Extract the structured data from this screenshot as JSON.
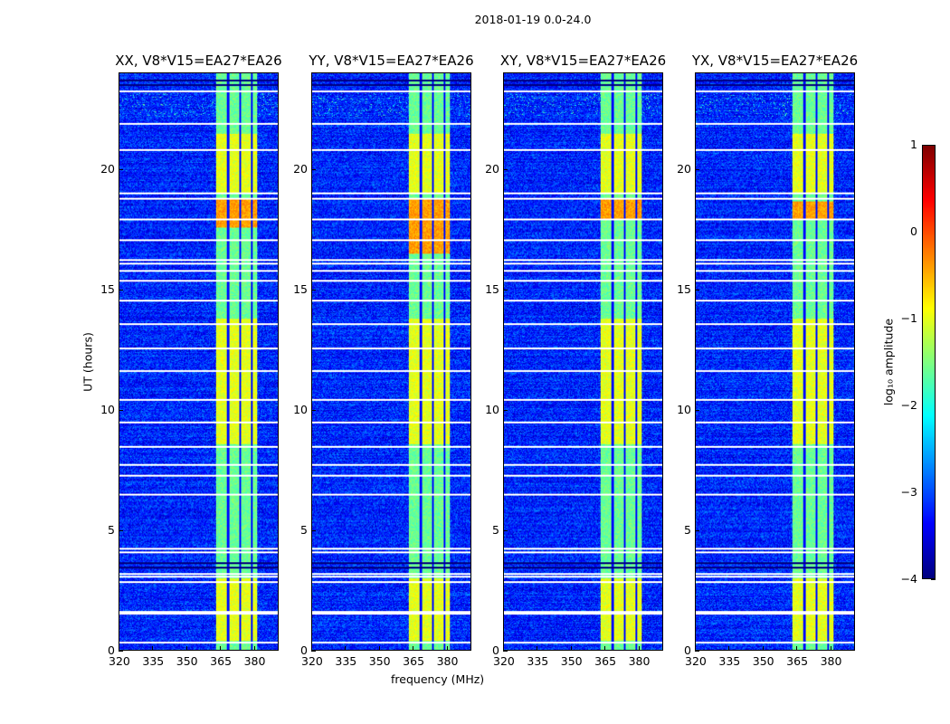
{
  "chart_data": {
    "type": "heatmap",
    "title": "2018-01-19 0.0-24.0",
    "xlabel": "frequency (MHz)",
    "ylabel": "UT (hours)",
    "xlim": [
      320,
      391
    ],
    "ylim": [
      0,
      24
    ],
    "xticks": [
      "320",
      "335",
      "350",
      "365",
      "380"
    ],
    "xtick_values": [
      320,
      335,
      350,
      365,
      380
    ],
    "yticks": [
      "0",
      "5",
      "10",
      "15",
      "20"
    ],
    "ytick_values": [
      0,
      5,
      10,
      15,
      20
    ],
    "panels": [
      {
        "title": "XX, V8*V15=EA27*EA26",
        "peak_hours": [
          17.6,
          18.8
        ]
      },
      {
        "title": "YY, V8*V15=EA27*EA26",
        "peak_hours": [
          16.5,
          18.8
        ]
      },
      {
        "title": "XY, V8*V15=EA27*EA26",
        "peak_hours": [
          17.9,
          18.8
        ]
      },
      {
        "title": "YX, V8*V15=EA27*EA26",
        "peak_hours": [
          17.9,
          18.7
        ]
      }
    ],
    "colormap": "jet",
    "colorbar": {
      "label": "log₁₀ amplitude",
      "vmin": -4,
      "vmax": 1,
      "ticks": [
        "−4",
        "−3",
        "−2",
        "−1",
        "0",
        "1"
      ],
      "tick_values": [
        -4,
        -3,
        -2,
        -1,
        0,
        1
      ]
    },
    "background_level": -3.2,
    "rfi_band_mhz": [
      363,
      381
    ],
    "rfi_band_level": -1.6,
    "rfi_band_gaps_mhz": [
      368.5,
      374,
      379.3
    ],
    "bright_hours": [
      [
        8.6,
        13.8
      ],
      [
        19.0,
        21.5
      ],
      [
        0.4,
        3.0
      ]
    ],
    "flagged_hours": [
      0.34,
      1.55,
      1.62,
      2.85,
      3.07,
      3.2,
      4.1,
      4.25,
      6.5,
      7.3,
      7.75,
      8.5,
      9.5,
      10.45,
      11.65,
      12.6,
      13.6,
      14.57,
      15.4,
      15.8,
      16.1,
      16.25,
      17.1,
      17.94,
      18.8,
      19.06,
      20.86,
      21.95,
      23.3
    ],
    "dark_hours": [
      3.45,
      3.65,
      23.55,
      23.75
    ]
  }
}
